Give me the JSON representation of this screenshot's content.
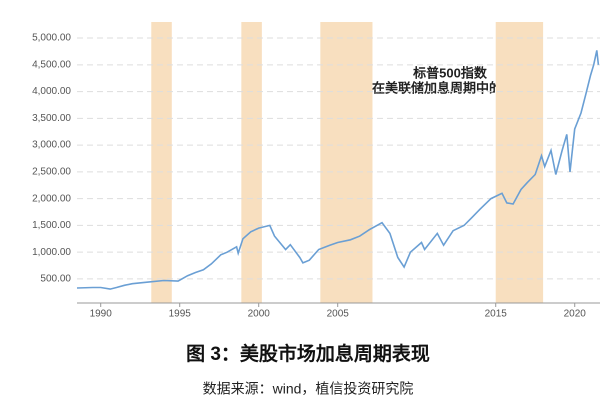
{
  "chart_data": {
    "type": "line",
    "annotation": [
      "标普500指数",
      "在美联储加息周期中的表现"
    ],
    "caption": "图 3：美股市场加息周期表现",
    "source": "数据来源：wind，植信投资研究院",
    "xlim": [
      1988.5,
      2021.6
    ],
    "xticks": [
      1990,
      1995,
      2000,
      2005,
      2015,
      2020
    ],
    "ylim": [
      50,
      5300
    ],
    "yticks": [
      {
        "value": 500,
        "label": "500.00"
      },
      {
        "value": 1000,
        "label": "1,000.00"
      },
      {
        "value": 1500,
        "label": "1,500.00"
      },
      {
        "value": 2000,
        "label": "2,000.00"
      },
      {
        "value": 2500,
        "label": "2,500.00"
      },
      {
        "value": 3000,
        "label": "3,000.00"
      },
      {
        "value": 3500,
        "label": "3,500.00"
      },
      {
        "value": 4000,
        "label": "4,000.00"
      },
      {
        "value": 4500,
        "label": "4,500.00"
      },
      {
        "value": 5000,
        "label": "5,000.00"
      }
    ],
    "grid": true,
    "shaded_periods": [
      [
        1993.2,
        1994.5
      ],
      [
        1998.9,
        2000.2
      ],
      [
        2003.9,
        2007.2
      ],
      [
        2015.0,
        2018.0
      ]
    ],
    "shade_color": "#f8dfbf",
    "series": [
      {
        "color": "#6a9fd4",
        "x": [
          1988.5,
          1989.5,
          1990.0,
          1990.6,
          1991.0,
          1991.5,
          1992.0,
          1993.0,
          1994.0,
          1994.9,
          1995.5,
          1996.0,
          1996.5,
          1997.0,
          1997.6,
          1998.0,
          1998.6,
          1998.7,
          1999.0,
          1999.5,
          2000.0,
          2000.7,
          2001.0,
          2001.7,
          2002.0,
          2002.6,
          2002.8,
          2003.2,
          2003.8,
          2004.5,
          2005.0,
          2005.8,
          2006.4,
          2007.0,
          2007.8,
          2008.3,
          2008.8,
          2009.2,
          2009.6,
          2010.3,
          2010.5,
          2011.3,
          2011.7,
          2012.3,
          2013.0,
          2013.5,
          2014.0,
          2014.7,
          2015.4,
          2015.7,
          2016.1,
          2016.6,
          2017.0,
          2017.5,
          2017.9,
          2018.1,
          2018.5,
          2018.8,
          2019.2,
          2019.5,
          2019.7,
          2020.0,
          2020.4,
          2020.7,
          2021.0,
          2021.2,
          2021.4,
          2021.5
        ],
        "values": [
          330,
          340,
          340,
          310,
          340,
          380,
          410,
          440,
          470,
          460,
          560,
          620,
          670,
          780,
          950,
          1000,
          1100,
          980,
          1250,
          1380,
          1450,
          1500,
          1300,
          1050,
          1140,
          900,
          800,
          850,
          1050,
          1130,
          1180,
          1230,
          1300,
          1420,
          1550,
          1350,
          900,
          720,
          1000,
          1180,
          1050,
          1350,
          1130,
          1400,
          1500,
          1650,
          1800,
          2000,
          2100,
          1920,
          1900,
          2170,
          2300,
          2450,
          2800,
          2600,
          2900,
          2450,
          2900,
          3200,
          2500,
          3300,
          3600,
          3950,
          4300,
          4500,
          4770,
          4500
        ]
      }
    ]
  }
}
